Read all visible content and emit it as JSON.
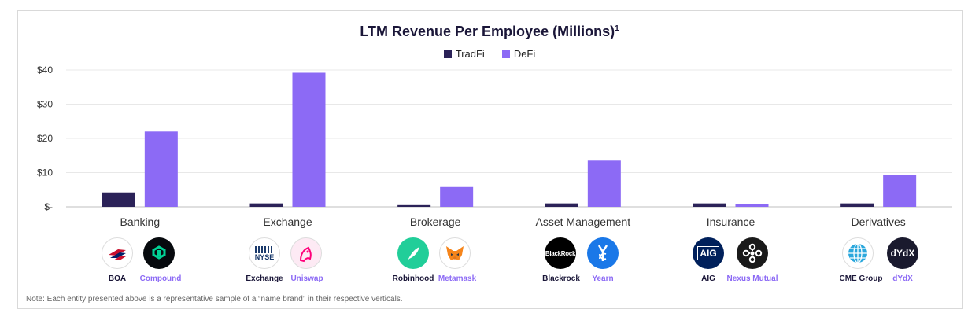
{
  "chart_data": {
    "type": "bar",
    "title": "LTM Revenue Per Employee (Millions)",
    "title_sup": "1",
    "categories": [
      "Banking",
      "Exchange",
      "Brokerage",
      "Asset Management",
      "Insurance",
      "Derivatives"
    ],
    "series": [
      {
        "name": "TradFi",
        "color": "#2b2258",
        "values": [
          4.2,
          1.0,
          0.5,
          1.0,
          1.0,
          1.0
        ]
      },
      {
        "name": "DeFi",
        "color": "#8c6af5",
        "values": [
          22.0,
          39.2,
          5.8,
          13.5,
          0.9,
          9.4
        ]
      }
    ],
    "ylim": [
      0,
      40
    ],
    "yticks": [
      0,
      10,
      20,
      30,
      40
    ],
    "ytick_labels": [
      "$-",
      "$10",
      "$20",
      "$30",
      "$40"
    ],
    "grid": true,
    "legend": "top-center"
  },
  "logos": [
    {
      "tradfi": "BOA",
      "defi": "Compound"
    },
    {
      "tradfi": "Exchange",
      "defi": "Uniswap"
    },
    {
      "tradfi": "Robinhood",
      "defi": "Metamask"
    },
    {
      "tradfi": "Blackrock",
      "defi": "Yearn"
    },
    {
      "tradfi": "AIG",
      "defi": "Nexus Mutual"
    },
    {
      "tradfi": "CME Group",
      "defi": "dYdX"
    }
  ],
  "logo_text": {
    "nyse": "NYSE",
    "blackrock": "BlackRock",
    "aig": "AIG",
    "dydx": "dYdX"
  },
  "colors": {
    "tradfi_label": "#1a1638",
    "defi_label": "#8c6af5"
  },
  "note": "Note: Each entity presented above is a representative sample of a “name brand” in their respective verticals."
}
